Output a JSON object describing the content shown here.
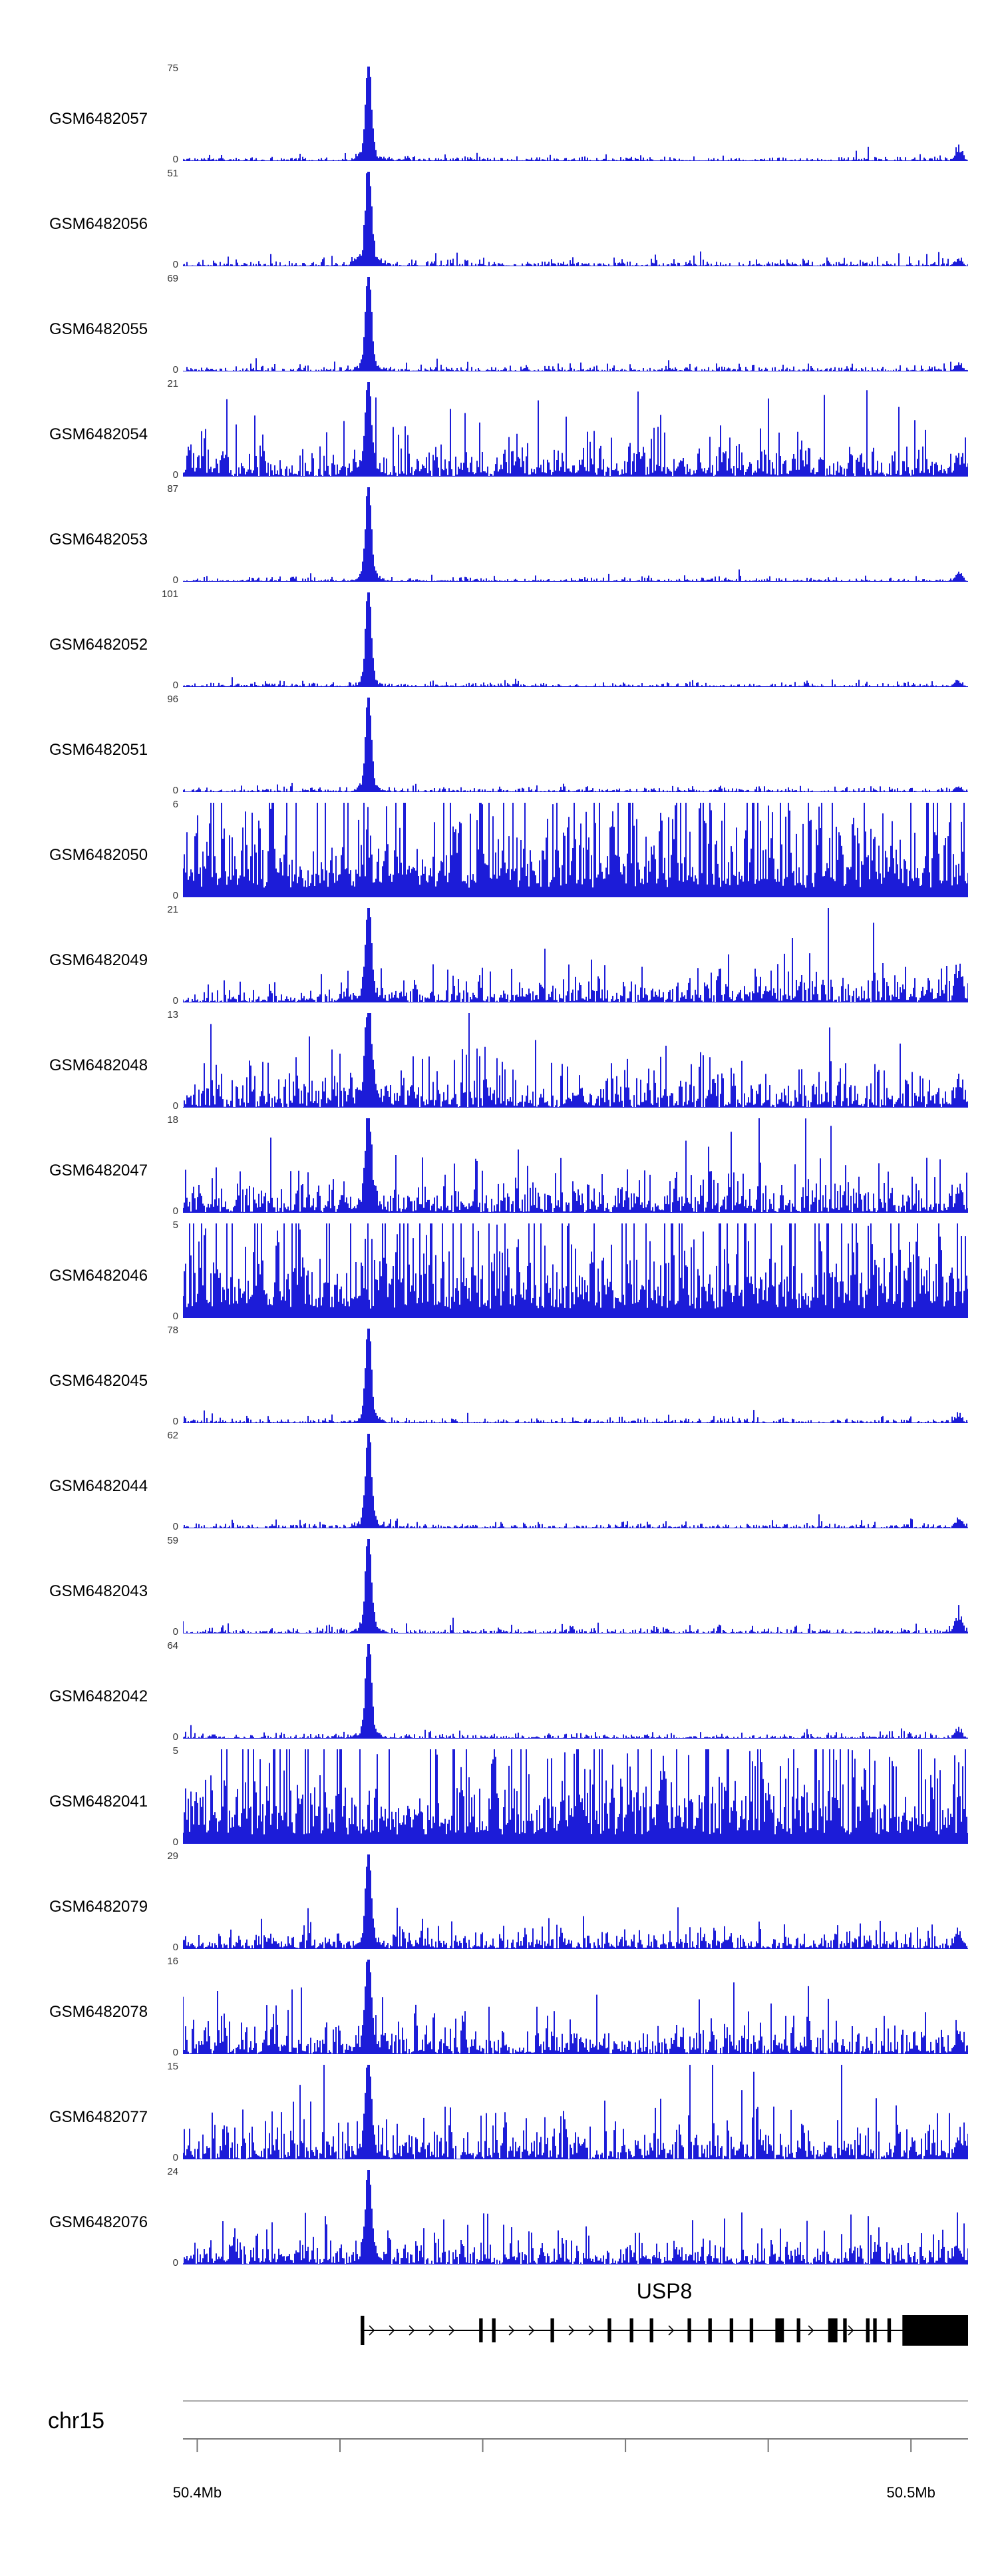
{
  "chart_data": {
    "type": "area",
    "title": "",
    "view": {
      "start_mb": 50.398,
      "end_mb": 50.508
    },
    "x_axis": {
      "chromosome": "chr15",
      "tick_start_mb": 50.4,
      "tick_end_mb": 50.5,
      "tick_interval_mb": 0.02,
      "start_label": "50.4Mb",
      "end_label": "50.5Mb"
    },
    "signal_color": "#1c1cd8",
    "peak_center_mb": 50.424,
    "y_axis_zero_label": "0",
    "tracks": [
      {
        "name": "GSM6482057",
        "ymax": 75,
        "profile": "peak",
        "noise": 0.05,
        "shoulder": 0.1,
        "edge_bump": 0.18,
        "ramp": 0
      },
      {
        "name": "GSM6482056",
        "ymax": 51,
        "profile": "peak",
        "noise": 0.07,
        "shoulder": 0.17,
        "edge_bump": 0.1,
        "ramp": 0
      },
      {
        "name": "GSM6482055",
        "ymax": 69,
        "profile": "peak",
        "noise": 0.06,
        "shoulder": 0.12,
        "edge_bump": 0.1,
        "ramp": 0
      },
      {
        "name": "GSM6482054",
        "ymax": 21,
        "profile": "peak",
        "noise": 0.45,
        "shoulder": 0.15,
        "edge_bump": 0.2,
        "ramp": 0
      },
      {
        "name": "GSM6482053",
        "ymax": 87,
        "profile": "peak",
        "noise": 0.05,
        "shoulder": 0.1,
        "edge_bump": 0.12,
        "ramp": 0
      },
      {
        "name": "GSM6482052",
        "ymax": 101,
        "profile": "peak",
        "noise": 0.05,
        "shoulder": 0.09,
        "edge_bump": 0.08,
        "ramp": 0
      },
      {
        "name": "GSM6482051",
        "ymax": 96,
        "profile": "peak",
        "noise": 0.05,
        "shoulder": 0.09,
        "edge_bump": 0.08,
        "ramp": 0
      },
      {
        "name": "GSM6482050",
        "ymax": 6,
        "profile": "dense",
        "noise": 1.0,
        "shoulder": 0,
        "edge_bump": 0,
        "ramp": 0
      },
      {
        "name": "GSM6482049",
        "ymax": 21,
        "profile": "peak",
        "noise": 0.3,
        "shoulder": 0.14,
        "edge_bump": 0.45,
        "ramp": 1.2
      },
      {
        "name": "GSM6482048",
        "ymax": 13,
        "profile": "peak",
        "noise": 0.5,
        "shoulder": 0.3,
        "edge_bump": 0.3,
        "ramp": 0
      },
      {
        "name": "GSM6482047",
        "ymax": 18,
        "profile": "peak",
        "noise": 0.45,
        "shoulder": 0.2,
        "edge_bump": 0.3,
        "ramp": 0
      },
      {
        "name": "GSM6482046",
        "ymax": 5,
        "profile": "dense",
        "noise": 1.0,
        "shoulder": 0,
        "edge_bump": 0,
        "ramp": 0
      },
      {
        "name": "GSM6482045",
        "ymax": 78,
        "profile": "peak",
        "noise": 0.05,
        "shoulder": 0.1,
        "edge_bump": 0.1,
        "ramp": 0
      },
      {
        "name": "GSM6482044",
        "ymax": 62,
        "profile": "peak",
        "noise": 0.06,
        "shoulder": 0.11,
        "edge_bump": 0.14,
        "ramp": 0
      },
      {
        "name": "GSM6482043",
        "ymax": 59,
        "profile": "peak",
        "noise": 0.06,
        "shoulder": 0.12,
        "edge_bump": 0.25,
        "ramp": 0
      },
      {
        "name": "GSM6482042",
        "ymax": 64,
        "profile": "peak",
        "noise": 0.06,
        "shoulder": 0.11,
        "edge_bump": 0.12,
        "ramp": 0
      },
      {
        "name": "GSM6482041",
        "ymax": 5,
        "profile": "dense",
        "noise": 1.0,
        "shoulder": 0,
        "edge_bump": 0,
        "ramp": 0
      },
      {
        "name": "GSM6482079",
        "ymax": 29,
        "profile": "peak",
        "noise": 0.22,
        "shoulder": 0.12,
        "edge_bump": 0.2,
        "ramp": 0
      },
      {
        "name": "GSM6482078",
        "ymax": 16,
        "profile": "peak",
        "noise": 0.4,
        "shoulder": 0.18,
        "edge_bump": 0.3,
        "ramp": 0
      },
      {
        "name": "GSM6482077",
        "ymax": 15,
        "profile": "peak",
        "noise": 0.45,
        "shoulder": 0.18,
        "edge_bump": 0.3,
        "ramp": 0
      },
      {
        "name": "GSM6482076",
        "ymax": 24,
        "profile": "peak",
        "noise": 0.32,
        "shoulder": 0.15,
        "edge_bump": 0.25,
        "ramp": 0
      }
    ],
    "gene": {
      "name": "USP8",
      "strand": "+",
      "start_mb": 50.4229,
      "end_mb": 50.508,
      "exons_mb": [
        [
          50.4229,
          50.4234
        ],
        [
          50.4395,
          50.44
        ],
        [
          50.4413,
          50.4418
        ],
        [
          50.4495,
          50.45
        ],
        [
          50.4575,
          50.458
        ],
        [
          50.4606,
          50.4611
        ],
        [
          50.4634,
          50.4639
        ],
        [
          50.4687,
          50.4692
        ],
        [
          50.4716,
          50.4721
        ],
        [
          50.4746,
          50.4751
        ],
        [
          50.4774,
          50.4779
        ],
        [
          50.481,
          50.4822
        ],
        [
          50.484,
          50.4845
        ],
        [
          50.4884,
          50.4897
        ],
        [
          50.4905,
          50.491
        ],
        [
          50.4937,
          50.4942
        ],
        [
          50.4947,
          50.4952
        ],
        [
          50.4967,
          50.4972
        ],
        [
          50.4988,
          50.508
        ]
      ]
    }
  }
}
